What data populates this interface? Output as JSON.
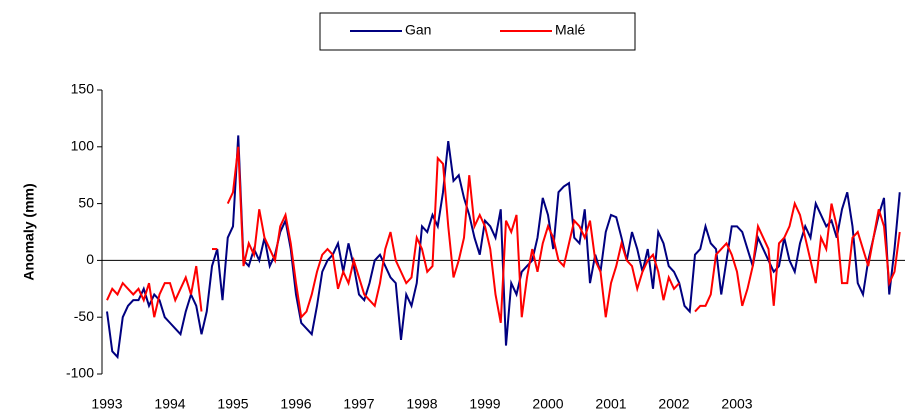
{
  "chart_data": {
    "type": "line",
    "y_label": "Anomaly (mm)",
    "ylim": [
      -100,
      150
    ],
    "yticks": [
      -100,
      -50,
      0,
      50,
      100,
      150
    ],
    "categories": [
      "1993",
      null,
      null,
      null,
      null,
      null,
      null,
      null,
      null,
      null,
      null,
      null,
      "1994",
      null,
      null,
      null,
      null,
      null,
      null,
      null,
      null,
      null,
      null,
      null,
      "1995",
      null,
      null,
      null,
      null,
      null,
      null,
      null,
      null,
      null,
      null,
      null,
      "1996",
      null,
      null,
      null,
      null,
      null,
      null,
      null,
      null,
      null,
      null,
      null,
      "1997",
      null,
      null,
      null,
      null,
      null,
      null,
      null,
      null,
      null,
      null,
      null,
      "1998",
      null,
      null,
      null,
      null,
      null,
      null,
      null,
      null,
      null,
      null,
      null,
      "1999",
      null,
      null,
      null,
      null,
      null,
      null,
      null,
      null,
      null,
      null,
      null,
      "2000",
      null,
      null,
      null,
      null,
      null,
      null,
      null,
      null,
      null,
      null,
      null,
      "2001",
      null,
      null,
      null,
      null,
      null,
      null,
      null,
      null,
      null,
      null,
      null,
      "2002",
      null,
      null,
      null,
      null,
      null,
      null,
      null,
      null,
      null,
      null,
      null,
      "2003",
      null,
      null,
      null,
      null,
      null,
      null,
      null,
      null,
      null,
      null,
      null,
      null,
      null,
      null,
      null,
      null,
      null,
      null,
      null,
      null,
      null,
      null,
      null,
      null,
      null,
      null,
      null,
      null,
      null,
      null,
      null
    ],
    "series": [
      {
        "name": "Gan",
        "color": "#000080",
        "values": [
          -45,
          -80,
          -85,
          -50,
          -40,
          -35,
          -35,
          -25,
          -40,
          -30,
          -35,
          -50,
          -55,
          -60,
          -65,
          -45,
          -30,
          -40,
          -65,
          -45,
          -5,
          10,
          -35,
          20,
          30,
          110,
          0,
          -5,
          10,
          0,
          20,
          -5,
          5,
          25,
          35,
          10,
          -30,
          -55,
          -60,
          -65,
          -40,
          -10,
          0,
          5,
          15,
          -10,
          15,
          -5,
          -30,
          -35,
          -20,
          0,
          5,
          -5,
          -15,
          -20,
          -70,
          -30,
          -40,
          -20,
          30,
          25,
          40,
          30,
          60,
          105,
          70,
          75,
          55,
          40,
          20,
          5,
          35,
          30,
          20,
          45,
          -75,
          -20,
          -30,
          -10,
          -5,
          0,
          20,
          55,
          40,
          10,
          60,
          65,
          68,
          20,
          15,
          45,
          -20,
          5,
          -10,
          25,
          40,
          38,
          20,
          0,
          25,
          10,
          -10,
          10,
          -25,
          25,
          15,
          -5,
          -10,
          -20,
          -40,
          -45,
          5,
          10,
          30,
          15,
          10,
          -30,
          0,
          30,
          30,
          25,
          10,
          -5,
          20,
          10,
          0,
          -10,
          -5,
          20,
          0,
          -10,
          15,
          30,
          20,
          50,
          40,
          30,
          35,
          20,
          45,
          60,
          30,
          -20,
          -30,
          0,
          20,
          40,
          55,
          -30,
          10,
          60
        ]
      },
      {
        "name": "Malé",
        "color": "#ff0000",
        "values": [
          -35,
          -25,
          -30,
          -20,
          -25,
          -30,
          -25,
          -35,
          -20,
          -50,
          -30,
          -20,
          -20,
          -35,
          -25,
          -15,
          -30,
          -5,
          -45,
          null,
          10,
          10,
          null,
          50,
          60,
          100,
          -5,
          15,
          5,
          45,
          20,
          10,
          0,
          30,
          40,
          15,
          -20,
          -50,
          -45,
          -30,
          -10,
          5,
          10,
          5,
          -25,
          -10,
          -20,
          0,
          -15,
          -30,
          -35,
          -40,
          -20,
          10,
          25,
          0,
          -10,
          -20,
          -15,
          20,
          10,
          -10,
          -5,
          90,
          85,
          30,
          -15,
          0,
          20,
          75,
          30,
          40,
          30,
          10,
          -30,
          -55,
          35,
          25,
          40,
          -50,
          -15,
          10,
          -10,
          15,
          30,
          20,
          0,
          -5,
          15,
          35,
          30,
          20,
          35,
          0,
          -10,
          -50,
          -20,
          -5,
          15,
          0,
          -5,
          -25,
          -10,
          0,
          5,
          -10,
          -35,
          -15,
          -25,
          -20,
          null,
          null,
          -45,
          -40,
          -40,
          -30,
          5,
          10,
          15,
          5,
          -10,
          -40,
          -25,
          -5,
          30,
          20,
          10,
          -40,
          15,
          20,
          30,
          50,
          40,
          20,
          0,
          -20,
          20,
          10,
          50,
          30,
          -20,
          -20,
          20,
          25,
          10,
          -5,
          20,
          45,
          30,
          -20,
          -10,
          25
        ]
      }
    ]
  }
}
